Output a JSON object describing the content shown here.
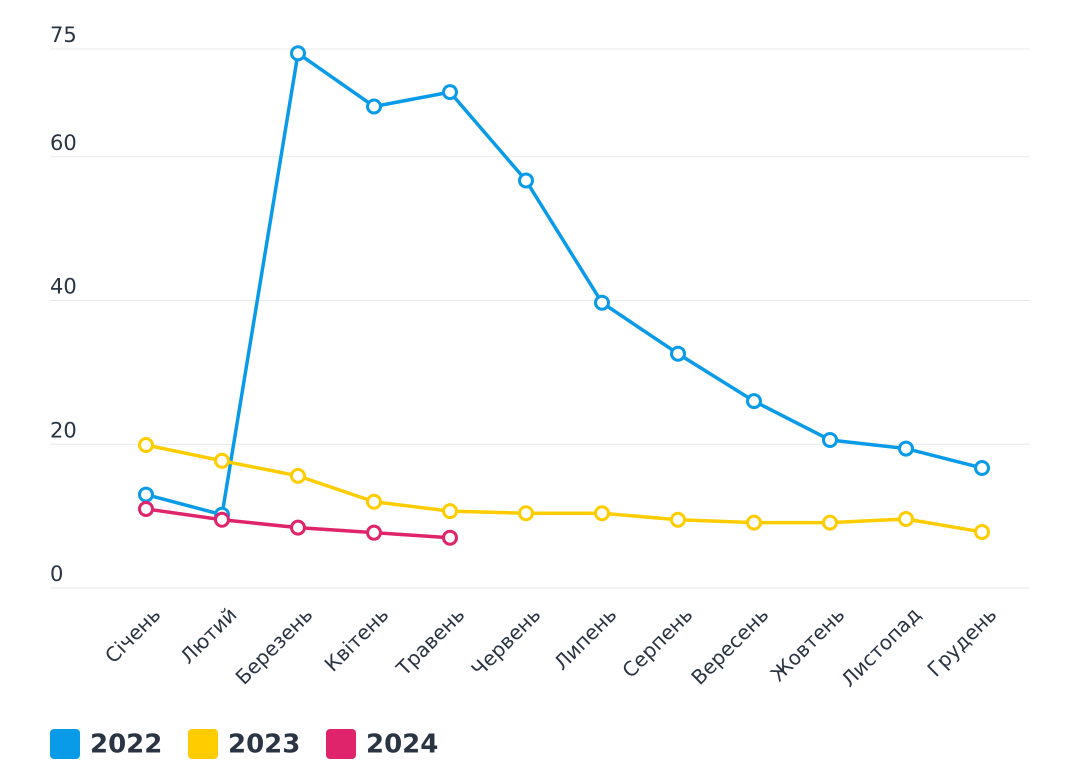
{
  "chart_data": {
    "type": "line",
    "categories": [
      "Січень",
      "Лютий",
      "Березень",
      "Квітень",
      "Травень",
      "Червень",
      "Липень",
      "Серпень",
      "Вересень",
      "Жовтень",
      "Листопад",
      "Грудень"
    ],
    "series": [
      {
        "name": "2022",
        "color": "#0a9be8",
        "values": [
          13.0,
          10.2,
          74.4,
          67.0,
          69.0,
          56.7,
          39.7,
          32.6,
          26.0,
          20.6,
          19.4,
          16.7
        ]
      },
      {
        "name": "2023",
        "color": "#ffcc00",
        "values": [
          19.9,
          17.7,
          15.6,
          12.0,
          10.7,
          10.4,
          10.4,
          9.5,
          9.1,
          9.1,
          9.6,
          7.8
        ]
      },
      {
        "name": "2024",
        "color": "#e0246b",
        "values": [
          11.0,
          9.5,
          8.4,
          7.7,
          7.0,
          null,
          null,
          null,
          null,
          null,
          null,
          null
        ]
      }
    ],
    "ylim": [
      0,
      75
    ],
    "yticks": [
      0,
      20,
      40,
      60,
      75
    ],
    "grid": true,
    "legend": "bottom"
  }
}
